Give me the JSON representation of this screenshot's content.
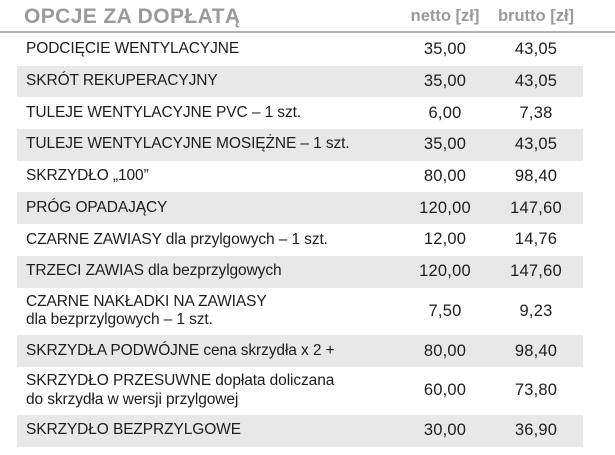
{
  "header": {
    "title": "OPCJE ZA DOPŁATĄ",
    "col_netto": "netto [zł]",
    "col_brutto": "brutto [zł]"
  },
  "colors": {
    "title_gray": "#9a9a9a",
    "row_alt_bg": "#e8e8e8",
    "divider": "#b3b3b3",
    "text": "#1d1d1d",
    "page_bg": "#ffffff"
  },
  "rows": [
    {
      "label": "PODCIĘCIE WENTYLACYJNE",
      "netto": "35,00",
      "brutto": "43,05"
    },
    {
      "label": "SKRÓT REKUPERACYJNY",
      "netto": "35,00",
      "brutto": "43,05"
    },
    {
      "label": "TULEJE WENTYLACYJNE PVC – 1 szt.",
      "netto": "6,00",
      "brutto": "7,38"
    },
    {
      "label": "TULEJE WENTYLACYJNE MOSIĘŻNE – 1 szt.",
      "netto": "35,00",
      "brutto": "43,05"
    },
    {
      "label": "SKRZYDŁO „100”",
      "netto": "80,00",
      "brutto": "98,40"
    },
    {
      "label": "PRÓG OPADAJĄCY",
      "netto": "120,00",
      "brutto": "147,60"
    },
    {
      "label": "CZARNE ZAWIASY dla przylgowych – 1 szt.",
      "netto": "12,00",
      "brutto": "14,76"
    },
    {
      "label": "TRZECI ZAWIAS dla bezprzylgowych",
      "netto": "120,00",
      "brutto": "147,60"
    },
    {
      "label": "CZARNE NAKŁADKI NA ZAWIASY\ndla bezprzylgowych – 1 szt.",
      "netto": "7,50",
      "brutto": "9,23"
    },
    {
      "label": "SKRZYDŁA PODWÓJNE cena skrzydła x 2 +",
      "netto": "80,00",
      "brutto": "98,40"
    },
    {
      "label": "SKRZYDŁO PRZESUWNE dopłata doliczana\ndo skrzydła w wersji przylgowej",
      "netto": "60,00",
      "brutto": "73,80"
    },
    {
      "label": "SKRZYDŁO BEZPRZYLGOWE",
      "netto": "30,00",
      "brutto": "36,90"
    }
  ]
}
